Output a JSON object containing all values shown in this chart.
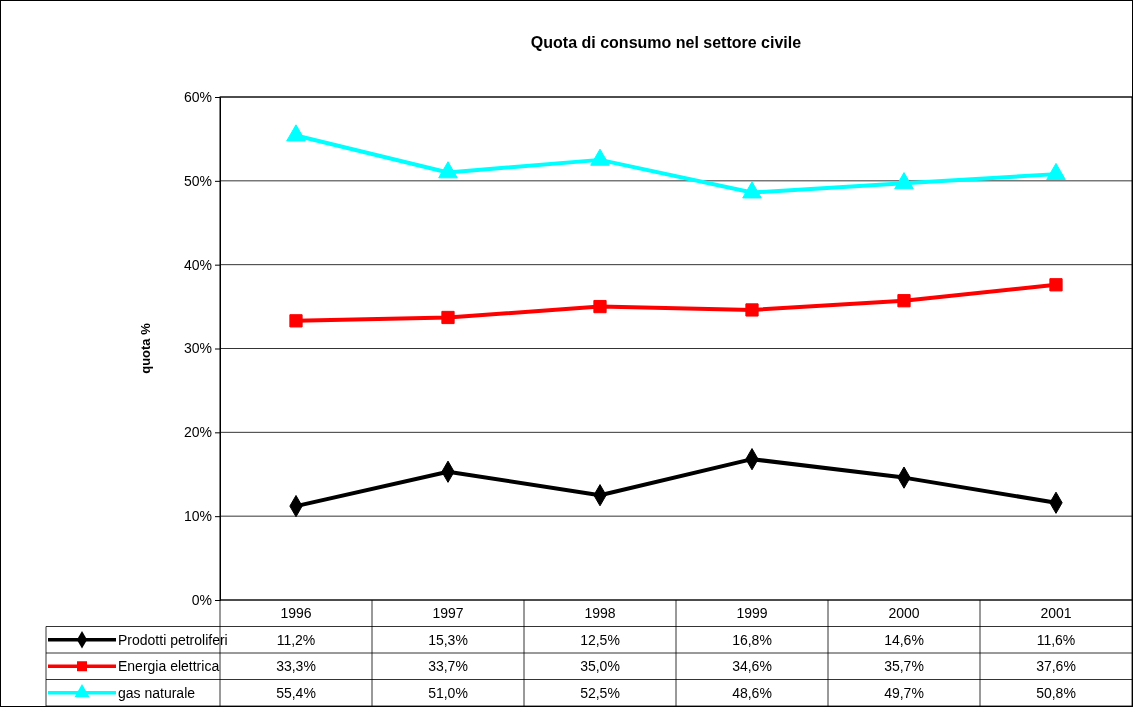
{
  "chart_data": {
    "type": "line",
    "title": "Quota di consumo nel settore civile",
    "ylabel": "quota %",
    "categories": [
      "1996",
      "1997",
      "1998",
      "1999",
      "2000",
      "2001"
    ],
    "ylim": [
      0,
      60
    ],
    "yticks": [
      {
        "value": 0,
        "label": "0%"
      },
      {
        "value": 10,
        "label": "10%"
      },
      {
        "value": 20,
        "label": "20%"
      },
      {
        "value": 30,
        "label": "30%"
      },
      {
        "value": 40,
        "label": "40%"
      },
      {
        "value": 50,
        "label": "50%"
      },
      {
        "value": 60,
        "label": "60%"
      }
    ],
    "grid": "y",
    "legend": "bottom",
    "line_style": "solid",
    "series": [
      {
        "name": "Prodotti petroliferi",
        "color": "#000000",
        "marker": "diamond",
        "values": [
          11.2,
          15.3,
          12.5,
          16.8,
          14.6,
          11.6
        ],
        "value_labels": [
          "11,2%",
          "15,3%",
          "12,5%",
          "16,8%",
          "14,6%",
          "11,6%"
        ]
      },
      {
        "name": "Energia elettrica",
        "color": "#ff0000",
        "marker": "square",
        "values": [
          33.3,
          33.7,
          35.0,
          34.6,
          35.7,
          37.6
        ],
        "value_labels": [
          "33,3%",
          "33,7%",
          "35,0%",
          "34,6%",
          "35,7%",
          "37,6%"
        ]
      },
      {
        "name": "gas naturale",
        "color": "#00ffff",
        "marker": "triangle",
        "values": [
          55.4,
          51.0,
          52.5,
          48.6,
          49.7,
          50.8
        ],
        "value_labels": [
          "55,4%",
          "51,0%",
          "52,5%",
          "48,6%",
          "49,7%",
          "50,8%"
        ]
      }
    ]
  }
}
